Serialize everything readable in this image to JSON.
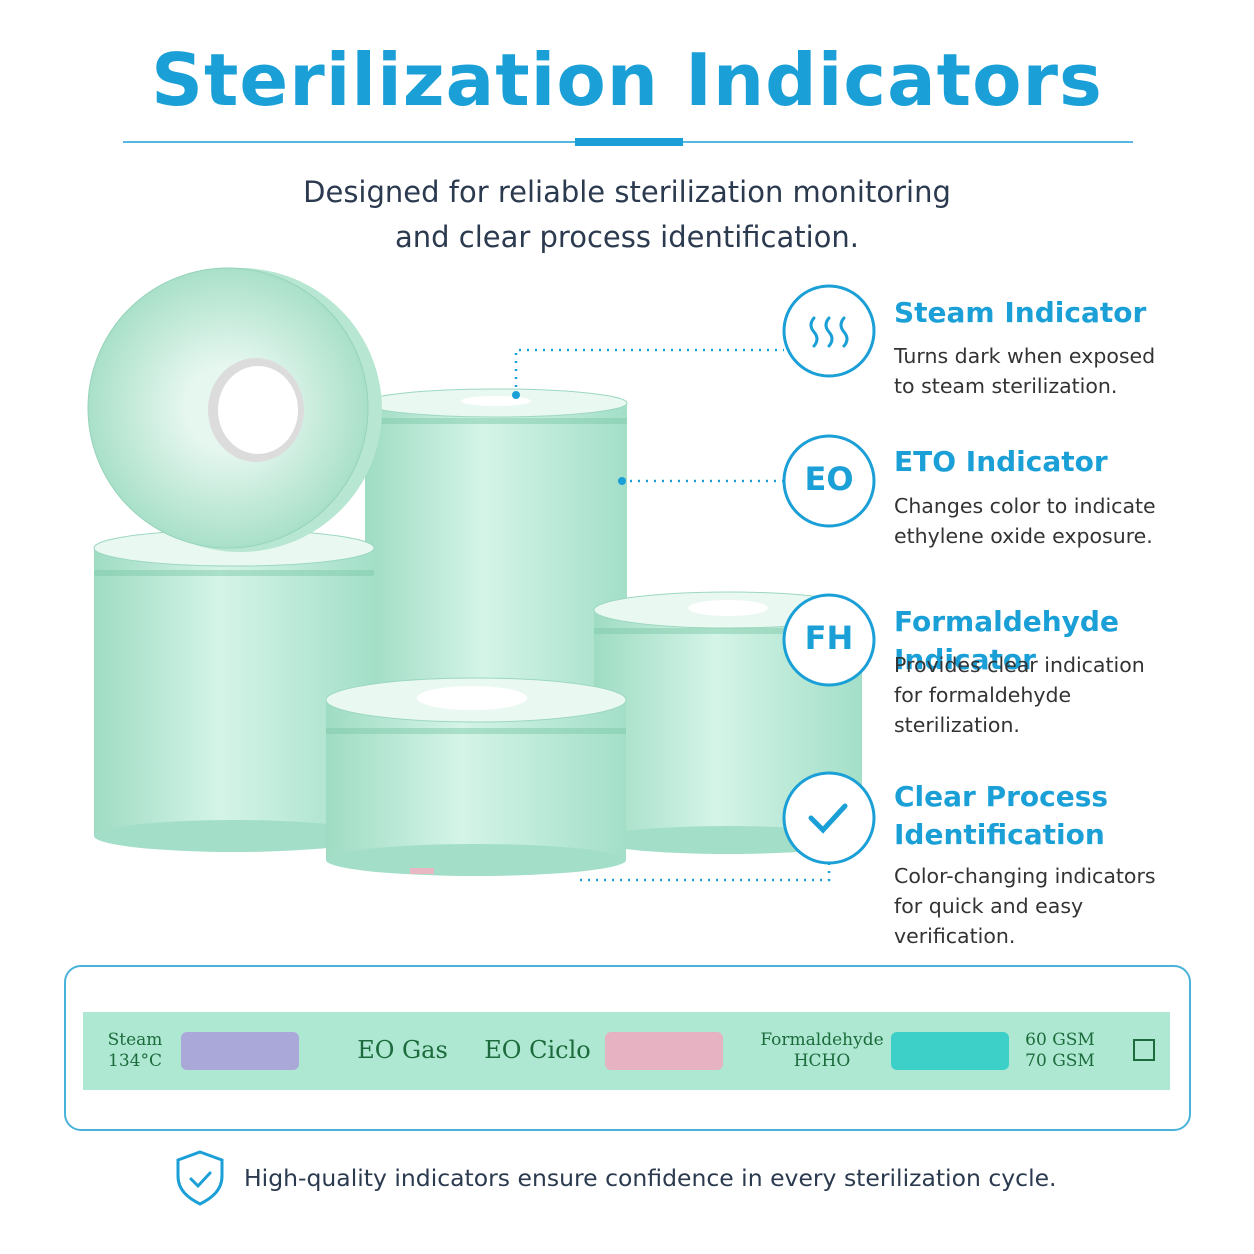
{
  "header": {
    "title": "Sterilization Indicators",
    "subtitle": "Designed for reliable sterilization monitoring and clear process identification."
  },
  "features": [
    {
      "title": "Steam Indicator",
      "description": "Turns dark when exposed to steam sterilization."
    },
    {
      "icon": "EO",
      "title": "ETO Indicator",
      "description": "Changes color to indicate ethylene oxide exposure."
    },
    {
      "icon": "FH",
      "title": "Formaldehyde Indicator",
      "description": "Provides clear indication for formaldehyde sterilization."
    },
    {
      "title": "Clear Process Identification",
      "description": "Color-changing indicators for quick and easy verification."
    }
  ],
  "strip": {
    "steam": "Steam",
    "steam_temp": "134°C",
    "eo_gas": "EO Gas",
    "eo_ciclo": "EO Ciclo",
    "formaldehyde": "Formaldehyde",
    "hcho": "HCHO",
    "gsm_60": "60 GSM",
    "gsm_70": "70 GSM"
  },
  "footer": {
    "text": "High-quality indicators ensure confidence in every sterilization cycle."
  }
}
